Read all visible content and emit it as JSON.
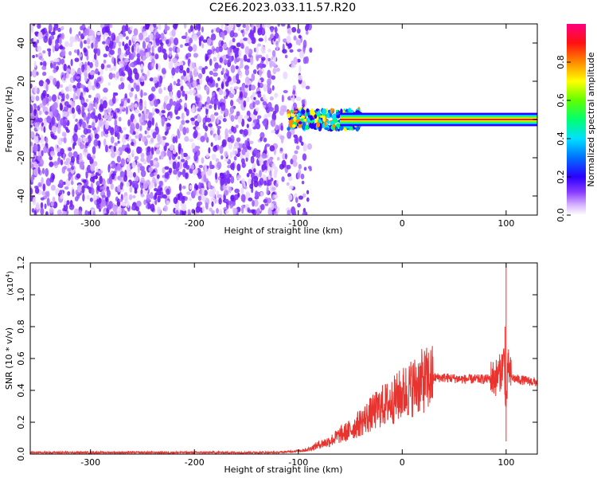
{
  "chart_data": [
    {
      "type": "heatmap",
      "title": "C2E6.2023.033.11.57.R20",
      "xlabel": "Height of straight line (km)",
      "ylabel": "Frequency (Hz)",
      "xlim": [
        -358,
        130
      ],
      "ylim": [
        -50,
        50
      ],
      "x_ticks": [
        -300,
        -200,
        -100,
        0,
        100
      ],
      "x_tick_labels": [
        "-300",
        "-200",
        "-100",
        "0",
        "100"
      ],
      "y_ticks": [
        -40,
        -20,
        0,
        20,
        40
      ],
      "y_tick_labels": [
        "-40",
        "-20",
        "0",
        "20",
        "40"
      ],
      "colorbar": {
        "label": "Normalized spectral amplitude",
        "range": [
          0.0,
          1.0
        ],
        "ticks": [
          0.0,
          0.2,
          0.4,
          0.6,
          0.8
        ],
        "tick_labels": [
          "0.0",
          "0.2",
          "0.4",
          "0.6",
          "0.8"
        ],
        "colormap": "rainbow-white-to-magenta"
      },
      "features": {
        "broadband_noise_x_range": [
          -358,
          -100
        ],
        "narrow_signal_x_range": [
          -110,
          130
        ],
        "signal_frequency_hz": 0
      }
    },
    {
      "type": "line",
      "title": "",
      "xlabel": "Height of straight line (km)",
      "ylabel": "SNR (10 * v/v)",
      "y_scale_label": "(x10",
      "y_scale_exponent": "4",
      "y_scale_close": ")",
      "xlim": [
        -358,
        130
      ],
      "ylim": [
        0,
        1.2
      ],
      "x_ticks": [
        -300,
        -200,
        -100,
        0,
        100
      ],
      "x_tick_labels": [
        "-300",
        "-200",
        "-100",
        "0",
        "100"
      ],
      "y_ticks": [
        0.0,
        0.2,
        0.4,
        0.6,
        0.8,
        1.0,
        1.2
      ],
      "y_tick_labels": [
        "0.0",
        "0.2",
        "0.4",
        "0.6",
        "0.8",
        "1.0",
        "1.2"
      ],
      "color": "#e8332e",
      "series": [
        {
          "x": [
            -358,
            -300,
            -250,
            -200,
            -150,
            -120,
            -100,
            -90,
            -80,
            -70,
            -60,
            -50,
            -40,
            -30,
            -20,
            -10,
            0,
            10,
            20,
            30,
            40,
            60,
            80,
            90,
            95,
            98,
            100,
            102,
            105,
            110,
            120,
            130
          ],
          "y": [
            0.01,
            0.01,
            0.01,
            0.01,
            0.01,
            0.01,
            0.02,
            0.03,
            0.06,
            0.08,
            0.12,
            0.15,
            0.2,
            0.25,
            0.3,
            0.33,
            0.38,
            0.42,
            0.46,
            0.48,
            0.48,
            0.47,
            0.47,
            0.48,
            0.52,
            0.6,
            0.3,
            0.55,
            0.48,
            0.47,
            0.46,
            0.45
          ]
        }
      ],
      "annotations": [
        {
          "x": 100,
          "y": 1.2,
          "text": ""
        },
        {
          "x": 99,
          "y": 0.8,
          "text": ""
        },
        {
          "x": 100,
          "y": 0.08,
          "text": ""
        }
      ]
    }
  ]
}
